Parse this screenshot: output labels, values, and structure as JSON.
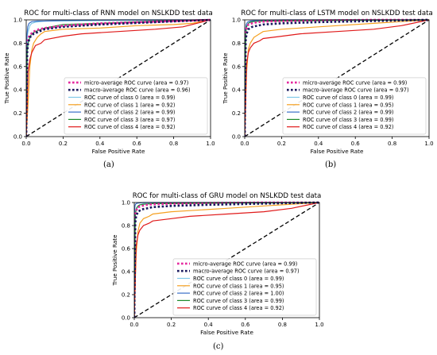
{
  "chart_data": [
    {
      "type": "line",
      "title": "ROC for multi-class of RNN model on NSLKDD test data",
      "xlabel": "False Positive Rate",
      "ylabel": "True Positive Rate",
      "xlim": [
        0,
        1
      ],
      "ylim": [
        0,
        1
      ],
      "xticks": [
        "0.0",
        "0.2",
        "0.4",
        "0.6",
        "0.8",
        "1.0"
      ],
      "yticks": [
        "0.0",
        "0.2",
        "0.4",
        "0.6",
        "0.8",
        "1.0"
      ],
      "caption": "(a)",
      "legend_position": "lower-right",
      "series": [
        {
          "name": "micro-average ROC curve (area = 0.97)",
          "color": "#e5289e",
          "style": "dotted",
          "x": [
            0,
            0.005,
            0.01,
            0.02,
            0.04,
            0.07,
            0.1,
            0.2,
            0.4,
            0.7,
            1.0
          ],
          "y": [
            0,
            0.78,
            0.84,
            0.87,
            0.9,
            0.92,
            0.93,
            0.95,
            0.97,
            0.985,
            1.0
          ]
        },
        {
          "name": "macro-average ROC curve (area = 0.96)",
          "color": "#1a1a5e",
          "style": "dotted",
          "x": [
            0,
            0.005,
            0.01,
            0.02,
            0.04,
            0.07,
            0.1,
            0.2,
            0.4,
            0.7,
            1.0
          ],
          "y": [
            0,
            0.72,
            0.8,
            0.85,
            0.88,
            0.9,
            0.92,
            0.94,
            0.96,
            0.98,
            1.0
          ]
        },
        {
          "name": "ROC curve of class 0 (area = 0.99)",
          "color": "#7fc8e8",
          "style": "solid",
          "x": [
            0,
            0.005,
            0.01,
            0.02,
            0.03,
            0.05,
            0.1,
            0.2,
            0.5,
            1.0
          ],
          "y": [
            0,
            0.86,
            0.9,
            0.95,
            0.97,
            0.98,
            0.99,
            0.99,
            0.995,
            1.0
          ]
        },
        {
          "name": "ROC curve of class 1 (area = 0.92)",
          "color": "#f5a020",
          "style": "solid",
          "x": [
            0,
            0.01,
            0.02,
            0.03,
            0.04,
            0.06,
            0.08,
            0.1,
            0.2,
            0.4,
            0.6,
            0.8,
            0.9,
            1.0
          ],
          "y": [
            0,
            0.28,
            0.6,
            0.74,
            0.8,
            0.85,
            0.88,
            0.9,
            0.92,
            0.93,
            0.95,
            0.96,
            0.97,
            1.0
          ]
        },
        {
          "name": "ROC curve of class 2 (area = 0.99)",
          "color": "#3a6fc8",
          "style": "solid",
          "x": [
            0,
            0.003,
            0.008,
            0.015,
            0.03,
            0.06,
            0.1,
            0.2,
            0.5,
            1.0
          ],
          "y": [
            0,
            0.85,
            0.94,
            0.97,
            0.985,
            0.99,
            0.99,
            0.995,
            1.0,
            1.0
          ]
        },
        {
          "name": "ROC curve of class 3 (area = 0.97)",
          "color": "#1d8a2b",
          "style": "solid",
          "x": [
            0,
            0.005,
            0.01,
            0.02,
            0.03,
            0.05,
            0.1,
            0.2,
            0.4,
            0.7,
            1.0
          ],
          "y": [
            0,
            0.72,
            0.8,
            0.85,
            0.88,
            0.9,
            0.93,
            0.96,
            0.97,
            0.99,
            1.0
          ]
        },
        {
          "name": "ROC curve of class 4 (area = 0.92)",
          "color": "#e01a1a",
          "style": "solid",
          "x": [
            0,
            0.01,
            0.02,
            0.03,
            0.05,
            0.08,
            0.1,
            0.2,
            0.3,
            0.5,
            0.7,
            0.85,
            1.0
          ],
          "y": [
            0,
            0.55,
            0.66,
            0.72,
            0.78,
            0.8,
            0.83,
            0.86,
            0.88,
            0.9,
            0.92,
            0.94,
            1.0
          ]
        }
      ]
    },
    {
      "type": "line",
      "title": "ROC for multi-class of LSTM model on NSLKDD test data",
      "xlabel": "False Positive Rate",
      "ylabel": "True Positive Rate",
      "xlim": [
        0,
        1
      ],
      "ylim": [
        0,
        1
      ],
      "xticks": [
        "0.0",
        "0.2",
        "0.4",
        "0.6",
        "0.8",
        "1.0"
      ],
      "yticks": [
        "0.0",
        "0.2",
        "0.4",
        "0.6",
        "0.8",
        "1.0"
      ],
      "caption": "(b)",
      "legend_position": "lower-right",
      "series": [
        {
          "name": "micro-average ROC curve (area = 0.99)",
          "color": "#e5289e",
          "style": "dotted",
          "x": [
            0,
            0.005,
            0.01,
            0.02,
            0.04,
            0.07,
            0.1,
            0.2,
            0.4,
            0.7,
            1.0
          ],
          "y": [
            0,
            0.88,
            0.93,
            0.96,
            0.97,
            0.98,
            0.985,
            0.99,
            0.995,
            1.0,
            1.0
          ]
        },
        {
          "name": "macro-average ROC curve (area = 0.97)",
          "color": "#1a1a5e",
          "style": "dotted",
          "x": [
            0,
            0.005,
            0.01,
            0.02,
            0.04,
            0.07,
            0.1,
            0.2,
            0.4,
            0.7,
            1.0
          ],
          "y": [
            0,
            0.82,
            0.88,
            0.92,
            0.94,
            0.95,
            0.96,
            0.97,
            0.98,
            0.99,
            1.0
          ]
        },
        {
          "name": "ROC curve of class 0 (area = 0.99)",
          "color": "#7fc8e8",
          "style": "solid",
          "x": [
            0,
            0.005,
            0.01,
            0.02,
            0.03,
            0.05,
            0.1,
            0.2,
            0.5,
            1.0
          ],
          "y": [
            0,
            0.9,
            0.95,
            0.97,
            0.98,
            0.99,
            0.99,
            0.995,
            1.0,
            1.0
          ]
        },
        {
          "name": "ROC curve of class 1 (area = 0.95)",
          "color": "#f5a020",
          "style": "solid",
          "x": [
            0,
            0.01,
            0.02,
            0.03,
            0.05,
            0.08,
            0.1,
            0.2,
            0.3,
            0.5,
            0.7,
            1.0
          ],
          "y": [
            0,
            0.55,
            0.75,
            0.8,
            0.85,
            0.88,
            0.9,
            0.92,
            0.93,
            0.95,
            0.97,
            1.0
          ]
        },
        {
          "name": "ROC curve of class 2 (area = 0.99)",
          "color": "#3a6fc8",
          "style": "solid",
          "x": [
            0,
            0.003,
            0.008,
            0.015,
            0.03,
            0.06,
            0.1,
            0.2,
            0.5,
            1.0
          ],
          "y": [
            0,
            0.9,
            0.96,
            0.98,
            0.99,
            0.995,
            0.995,
            1.0,
            1.0,
            1.0
          ]
        },
        {
          "name": "ROC curve of class 3 (area = 0.99)",
          "color": "#1d8a2b",
          "style": "solid",
          "x": [
            0,
            0.005,
            0.01,
            0.02,
            0.03,
            0.05,
            0.1,
            0.2,
            0.5,
            1.0
          ],
          "y": [
            0,
            0.88,
            0.94,
            0.97,
            0.98,
            0.985,
            0.99,
            0.99,
            0.995,
            1.0
          ]
        },
        {
          "name": "ROC curve of class 4 (area = 0.92)",
          "color": "#e01a1a",
          "style": "solid",
          "x": [
            0,
            0.01,
            0.02,
            0.03,
            0.05,
            0.08,
            0.1,
            0.2,
            0.3,
            0.5,
            0.7,
            0.85,
            1.0
          ],
          "y": [
            0,
            0.62,
            0.72,
            0.76,
            0.8,
            0.82,
            0.84,
            0.86,
            0.88,
            0.9,
            0.92,
            0.95,
            1.0
          ]
        }
      ]
    },
    {
      "type": "line",
      "title": "ROC for multi-class of GRU model on NSLKDD test data",
      "xlabel": "False Positive Rate",
      "ylabel": "True Positive Rate",
      "xlim": [
        0,
        1
      ],
      "ylim": [
        0,
        1
      ],
      "xticks": [
        "0.0",
        "0.2",
        "0.4",
        "0.6",
        "0.8",
        "1.0"
      ],
      "yticks": [
        "0.0",
        "0.2",
        "0.4",
        "0.6",
        "0.8",
        "1.0"
      ],
      "caption": "(c)",
      "legend_position": "lower-right",
      "series": [
        {
          "name": "micro-average ROC curve (area = 0.99)",
          "color": "#e5289e",
          "style": "dotted",
          "x": [
            0,
            0.005,
            0.01,
            0.02,
            0.04,
            0.07,
            0.1,
            0.2,
            0.4,
            0.7,
            1.0
          ],
          "y": [
            0,
            0.88,
            0.93,
            0.96,
            0.97,
            0.98,
            0.985,
            0.99,
            0.995,
            1.0,
            1.0
          ]
        },
        {
          "name": "macro-average ROC curve (area = 0.97)",
          "color": "#1a1a5e",
          "style": "dotted",
          "x": [
            0,
            0.005,
            0.01,
            0.02,
            0.04,
            0.07,
            0.1,
            0.2,
            0.4,
            0.7,
            1.0
          ],
          "y": [
            0,
            0.82,
            0.88,
            0.92,
            0.94,
            0.95,
            0.96,
            0.97,
            0.98,
            0.99,
            1.0
          ]
        },
        {
          "name": "ROC curve of class 0 (area = 0.99)",
          "color": "#7fc8e8",
          "style": "solid",
          "x": [
            0,
            0.005,
            0.01,
            0.02,
            0.03,
            0.05,
            0.1,
            0.2,
            0.5,
            1.0
          ],
          "y": [
            0,
            0.9,
            0.95,
            0.97,
            0.98,
            0.99,
            0.99,
            0.995,
            1.0,
            1.0
          ]
        },
        {
          "name": "ROC curve of class 1 (area = 0.95)",
          "color": "#f5a020",
          "style": "solid",
          "x": [
            0,
            0.01,
            0.02,
            0.03,
            0.05,
            0.08,
            0.1,
            0.2,
            0.3,
            0.5,
            0.7,
            1.0
          ],
          "y": [
            0,
            0.55,
            0.75,
            0.82,
            0.86,
            0.88,
            0.9,
            0.92,
            0.93,
            0.95,
            0.97,
            1.0
          ]
        },
        {
          "name": "ROC curve of class 2 (area = 1.00)",
          "color": "#3a6fc8",
          "style": "solid",
          "x": [
            0,
            0.002,
            0.005,
            0.01,
            0.02,
            0.05,
            0.1,
            0.5,
            1.0
          ],
          "y": [
            0,
            0.95,
            0.98,
            0.99,
            0.995,
            1.0,
            1.0,
            1.0,
            1.0
          ]
        },
        {
          "name": "ROC curve of class 3 (area = 0.99)",
          "color": "#1d8a2b",
          "style": "solid",
          "x": [
            0,
            0.005,
            0.01,
            0.02,
            0.03,
            0.05,
            0.1,
            0.2,
            0.5,
            1.0
          ],
          "y": [
            0,
            0.88,
            0.94,
            0.97,
            0.98,
            0.985,
            0.99,
            0.99,
            0.995,
            1.0
          ]
        },
        {
          "name": "ROC curve of class 4 (area = 0.92)",
          "color": "#e01a1a",
          "style": "solid",
          "x": [
            0,
            0.01,
            0.02,
            0.03,
            0.05,
            0.08,
            0.1,
            0.2,
            0.3,
            0.5,
            0.7,
            0.85,
            1.0
          ],
          "y": [
            0,
            0.62,
            0.72,
            0.76,
            0.8,
            0.82,
            0.84,
            0.86,
            0.88,
            0.9,
            0.92,
            0.95,
            1.0
          ]
        }
      ]
    }
  ]
}
